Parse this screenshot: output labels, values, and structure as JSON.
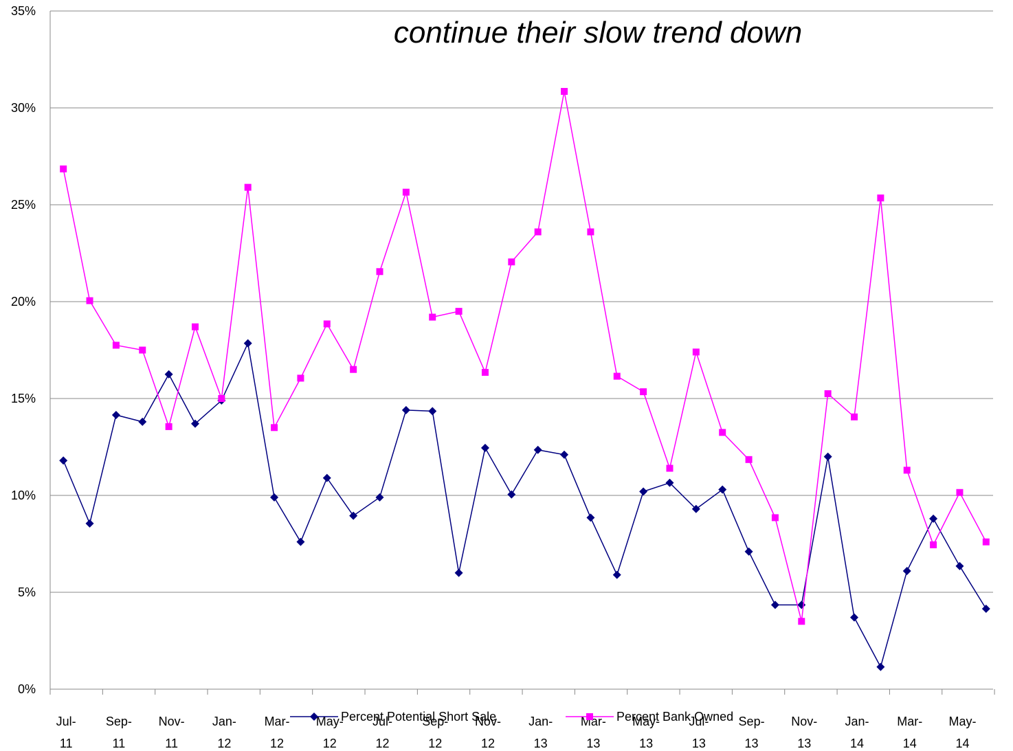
{
  "chart_data": {
    "type": "line",
    "title": "continue their slow trend down",
    "categories": [
      "Jul-11",
      null,
      "Sep-11",
      null,
      "Nov-11",
      null,
      "Jan-12",
      null,
      "Mar-12",
      null,
      "May-12",
      null,
      "Jul-12",
      null,
      "Sep-12",
      null,
      "Nov-12",
      null,
      "Jan-13",
      null,
      "Mar-13",
      null,
      "May-13",
      null,
      "Jul-13",
      null,
      "Sep-13",
      null,
      "Nov-13",
      null,
      "Jan-14",
      null,
      "Mar-14",
      null,
      "May-14",
      null
    ],
    "series": [
      {
        "name": "Percent Potential Short Sale",
        "color": "#000080",
        "marker": "diamond",
        "values": [
          11.8,
          8.55,
          14.15,
          13.8,
          16.25,
          13.7,
          14.9,
          17.85,
          9.9,
          7.6,
          10.9,
          8.95,
          9.9,
          14.4,
          14.35,
          6.0,
          12.45,
          10.05,
          12.35,
          12.1,
          8.85,
          5.9,
          10.2,
          10.65,
          9.3,
          10.3,
          7.1,
          4.35,
          4.35,
          12.0,
          3.7,
          1.15,
          6.1,
          8.8,
          6.35,
          4.15
        ]
      },
      {
        "name": "Percent Bank Owned",
        "color": "#ff00ff",
        "marker": "square",
        "values": [
          26.85,
          20.05,
          17.75,
          17.5,
          13.55,
          18.7,
          15.0,
          25.9,
          13.5,
          16.05,
          18.85,
          16.5,
          21.55,
          25.65,
          19.2,
          19.5,
          16.35,
          22.05,
          23.6,
          30.85,
          23.6,
          16.15,
          15.35,
          11.4,
          17.4,
          13.25,
          11.85,
          8.85,
          3.5,
          15.25,
          14.05,
          25.35,
          11.3,
          7.45,
          10.15,
          7.6
        ]
      }
    ],
    "ylim": [
      0,
      35
    ],
    "yticks": [
      {
        "value": 0,
        "label": "0%"
      },
      {
        "value": 5,
        "label": "5%"
      },
      {
        "value": 10,
        "label": "10%"
      },
      {
        "value": 15,
        "label": "15%"
      },
      {
        "value": 20,
        "label": "20%"
      },
      {
        "value": 25,
        "label": "25%"
      },
      {
        "value": 30,
        "label": "30%"
      },
      {
        "value": 35,
        "label": "35%"
      }
    ],
    "grid": true,
    "legend": "bottom"
  }
}
